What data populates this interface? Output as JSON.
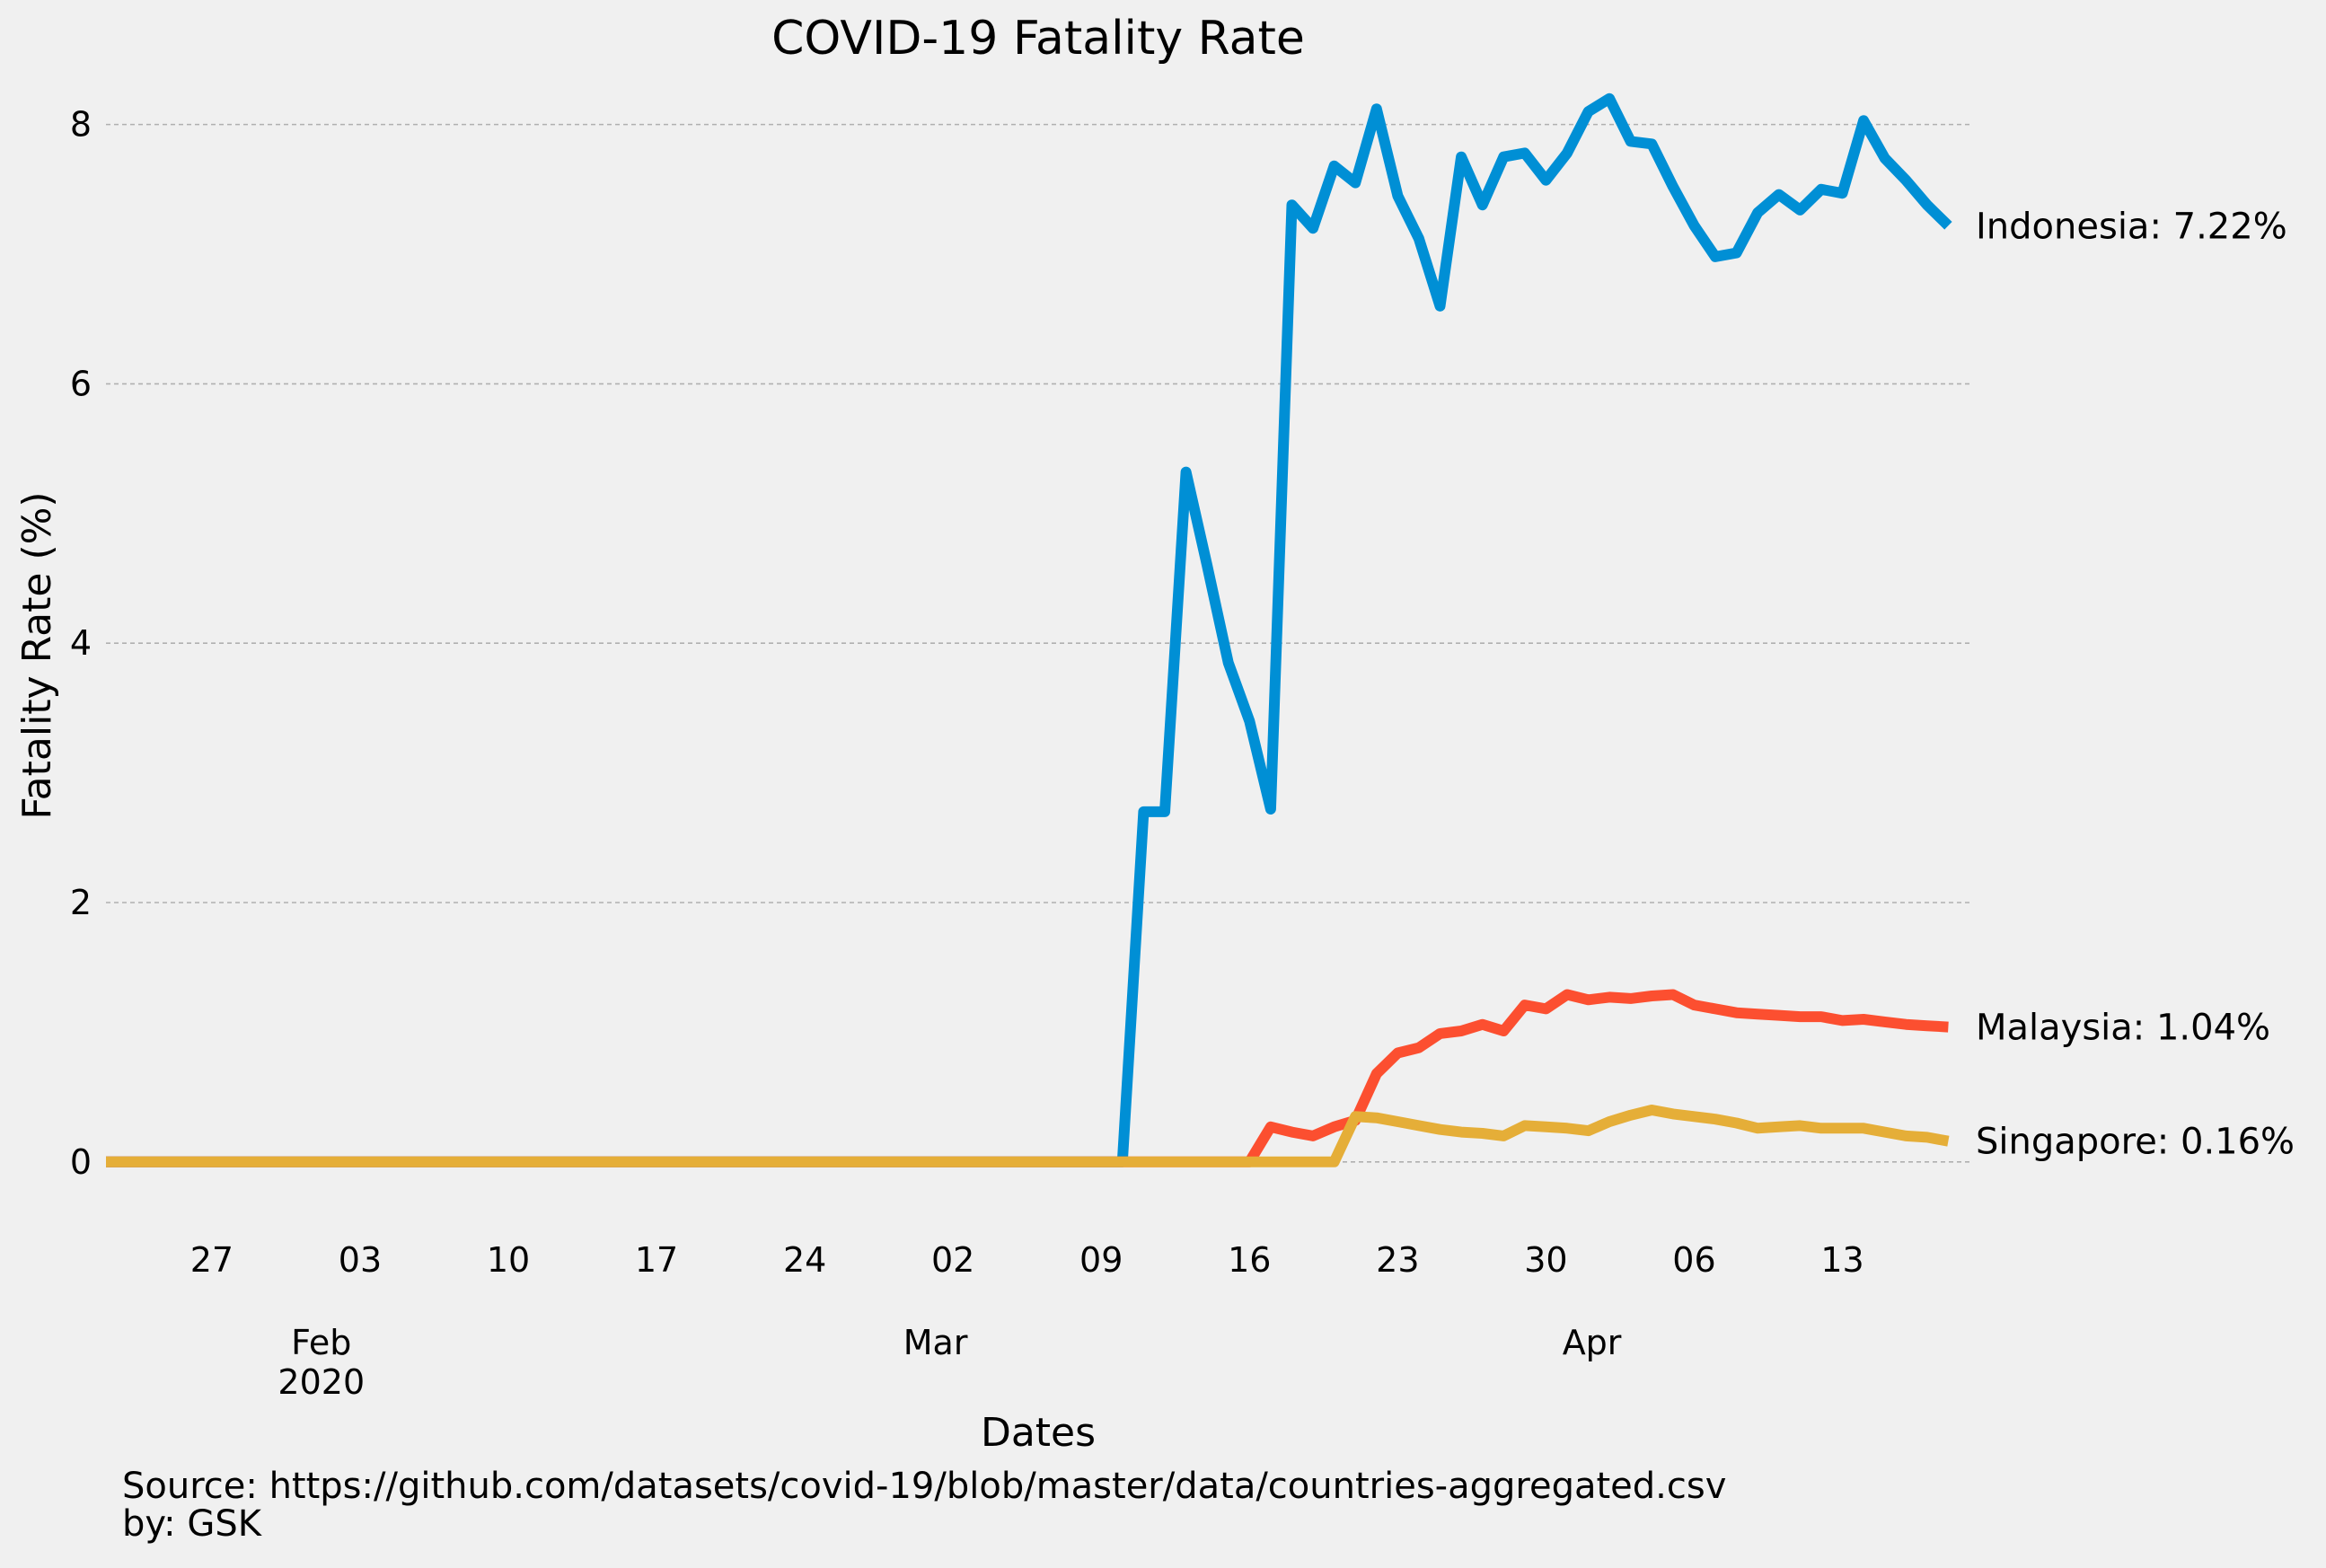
{
  "chart_data": {
    "type": "line",
    "title": "COVID-19 Fatality Rate",
    "xlabel": "Dates",
    "ylabel": "Fatality Rate (%)",
    "ylim": [
      -0.5,
      8.6
    ],
    "grid": "y-dashed",
    "x_start": "2020-01-22",
    "x_end": "2020-04-19",
    "x_ticks": [
      {
        "date": "2020-01-27",
        "label": "27"
      },
      {
        "date": "2020-02-03",
        "label": "03"
      },
      {
        "date": "2020-02-10",
        "label": "10"
      },
      {
        "date": "2020-02-17",
        "label": "17"
      },
      {
        "date": "2020-02-24",
        "label": "24"
      },
      {
        "date": "2020-03-02",
        "label": "02"
      },
      {
        "date": "2020-03-09",
        "label": "09"
      },
      {
        "date": "2020-03-16",
        "label": "16"
      },
      {
        "date": "2020-03-23",
        "label": "23"
      },
      {
        "date": "2020-03-30",
        "label": "30"
      },
      {
        "date": "2020-04-06",
        "label": "06"
      },
      {
        "date": "2020-04-13",
        "label": "13"
      }
    ],
    "x_month_labels": [
      {
        "date": "2020-02-01",
        "label": "Feb",
        "year": "2020"
      },
      {
        "date": "2020-03-01",
        "label": "Mar",
        "year": ""
      },
      {
        "date": "2020-04-01",
        "label": "Apr",
        "year": ""
      }
    ],
    "y_ticks": [
      0,
      2,
      4,
      6,
      8
    ],
    "series": [
      {
        "name": "Indonesia",
        "end_label": "Indonesia: 7.22%",
        "color": "#008fd5",
        "points": [
          [
            "2020-01-22",
            0
          ],
          [
            "2020-03-10",
            0
          ],
          [
            "2020-03-11",
            2.7
          ],
          [
            "2020-03-12",
            2.7
          ],
          [
            "2020-03-13",
            5.32
          ],
          [
            "2020-03-14",
            4.6
          ],
          [
            "2020-03-15",
            3.85
          ],
          [
            "2020-03-16",
            3.4
          ],
          [
            "2020-03-17",
            2.72
          ],
          [
            "2020-03-18",
            7.38
          ],
          [
            "2020-03-19",
            7.2
          ],
          [
            "2020-03-20",
            7.68
          ],
          [
            "2020-03-21",
            7.55
          ],
          [
            "2020-03-22",
            8.12
          ],
          [
            "2020-03-23",
            7.45
          ],
          [
            "2020-03-24",
            7.12
          ],
          [
            "2020-03-25",
            6.6
          ],
          [
            "2020-03-26",
            7.75
          ],
          [
            "2020-03-27",
            7.38
          ],
          [
            "2020-03-28",
            7.75
          ],
          [
            "2020-03-29",
            7.78
          ],
          [
            "2020-03-30",
            7.57
          ],
          [
            "2020-03-31",
            7.78
          ],
          [
            "2020-04-01",
            8.1
          ],
          [
            "2020-04-02",
            8.2
          ],
          [
            "2020-04-03",
            7.87
          ],
          [
            "2020-04-04",
            7.85
          ],
          [
            "2020-04-05",
            7.52
          ],
          [
            "2020-04-06",
            7.22
          ],
          [
            "2020-04-07",
            6.98
          ],
          [
            "2020-04-08",
            7.01
          ],
          [
            "2020-04-09",
            7.32
          ],
          [
            "2020-04-10",
            7.46
          ],
          [
            "2020-04-11",
            7.34
          ],
          [
            "2020-04-12",
            7.5
          ],
          [
            "2020-04-13",
            7.47
          ],
          [
            "2020-04-14",
            8.03
          ],
          [
            "2020-04-15",
            7.74
          ],
          [
            "2020-04-16",
            7.57
          ],
          [
            "2020-04-17",
            7.38
          ],
          [
            "2020-04-18",
            7.22
          ]
        ]
      },
      {
        "name": "Malaysia",
        "end_label": "Malaysia: 1.04%",
        "color": "#fc4f30",
        "points": [
          [
            "2020-01-22",
            0
          ],
          [
            "2020-03-15",
            0
          ],
          [
            "2020-03-16",
            0.0
          ],
          [
            "2020-03-17",
            0.27
          ],
          [
            "2020-03-18",
            0.23
          ],
          [
            "2020-03-19",
            0.2
          ],
          [
            "2020-03-20",
            0.27
          ],
          [
            "2020-03-21",
            0.32
          ],
          [
            "2020-03-22",
            0.68
          ],
          [
            "2020-03-23",
            0.84
          ],
          [
            "2020-03-24",
            0.88
          ],
          [
            "2020-03-25",
            0.99
          ],
          [
            "2020-03-26",
            1.01
          ],
          [
            "2020-03-27",
            1.06
          ],
          [
            "2020-03-28",
            1.01
          ],
          [
            "2020-03-29",
            1.21
          ],
          [
            "2020-03-30",
            1.18
          ],
          [
            "2020-03-31",
            1.29
          ],
          [
            "2020-04-01",
            1.25
          ],
          [
            "2020-04-02",
            1.27
          ],
          [
            "2020-04-03",
            1.26
          ],
          [
            "2020-04-04",
            1.28
          ],
          [
            "2020-04-05",
            1.29
          ],
          [
            "2020-04-06",
            1.21
          ],
          [
            "2020-04-07",
            1.18
          ],
          [
            "2020-04-08",
            1.15
          ],
          [
            "2020-04-09",
            1.14
          ],
          [
            "2020-04-10",
            1.13
          ],
          [
            "2020-04-11",
            1.12
          ],
          [
            "2020-04-12",
            1.12
          ],
          [
            "2020-04-13",
            1.09
          ],
          [
            "2020-04-14",
            1.1
          ],
          [
            "2020-04-15",
            1.08
          ],
          [
            "2020-04-16",
            1.06
          ],
          [
            "2020-04-17",
            1.05
          ],
          [
            "2020-04-18",
            1.04
          ]
        ]
      },
      {
        "name": "Singapore",
        "end_label": "Singapore: 0.16%",
        "color": "#e5ae38",
        "points": [
          [
            "2020-01-22",
            0
          ],
          [
            "2020-03-20",
            0
          ],
          [
            "2020-03-21",
            0.35
          ],
          [
            "2020-03-22",
            0.34
          ],
          [
            "2020-03-23",
            0.31
          ],
          [
            "2020-03-24",
            0.28
          ],
          [
            "2020-03-25",
            0.25
          ],
          [
            "2020-03-26",
            0.23
          ],
          [
            "2020-03-27",
            0.22
          ],
          [
            "2020-03-28",
            0.2
          ],
          [
            "2020-03-29",
            0.28
          ],
          [
            "2020-03-30",
            0.27
          ],
          [
            "2020-03-31",
            0.26
          ],
          [
            "2020-04-01",
            0.24
          ],
          [
            "2020-04-02",
            0.31
          ],
          [
            "2020-04-03",
            0.36
          ],
          [
            "2020-04-04",
            0.4
          ],
          [
            "2020-04-05",
            0.37
          ],
          [
            "2020-04-06",
            0.35
          ],
          [
            "2020-04-07",
            0.33
          ],
          [
            "2020-04-08",
            0.3
          ],
          [
            "2020-04-09",
            0.26
          ],
          [
            "2020-04-10",
            0.27
          ],
          [
            "2020-04-11",
            0.28
          ],
          [
            "2020-04-12",
            0.26
          ],
          [
            "2020-04-13",
            0.26
          ],
          [
            "2020-04-14",
            0.26
          ],
          [
            "2020-04-15",
            0.23
          ],
          [
            "2020-04-16",
            0.2
          ],
          [
            "2020-04-17",
            0.19
          ],
          [
            "2020-04-18",
            0.16
          ]
        ]
      }
    ]
  },
  "source": {
    "line1": "Source: https://github.com/datasets/covid-19/blob/master/data/countries-aggregated.csv",
    "line2": "by: GSK"
  }
}
